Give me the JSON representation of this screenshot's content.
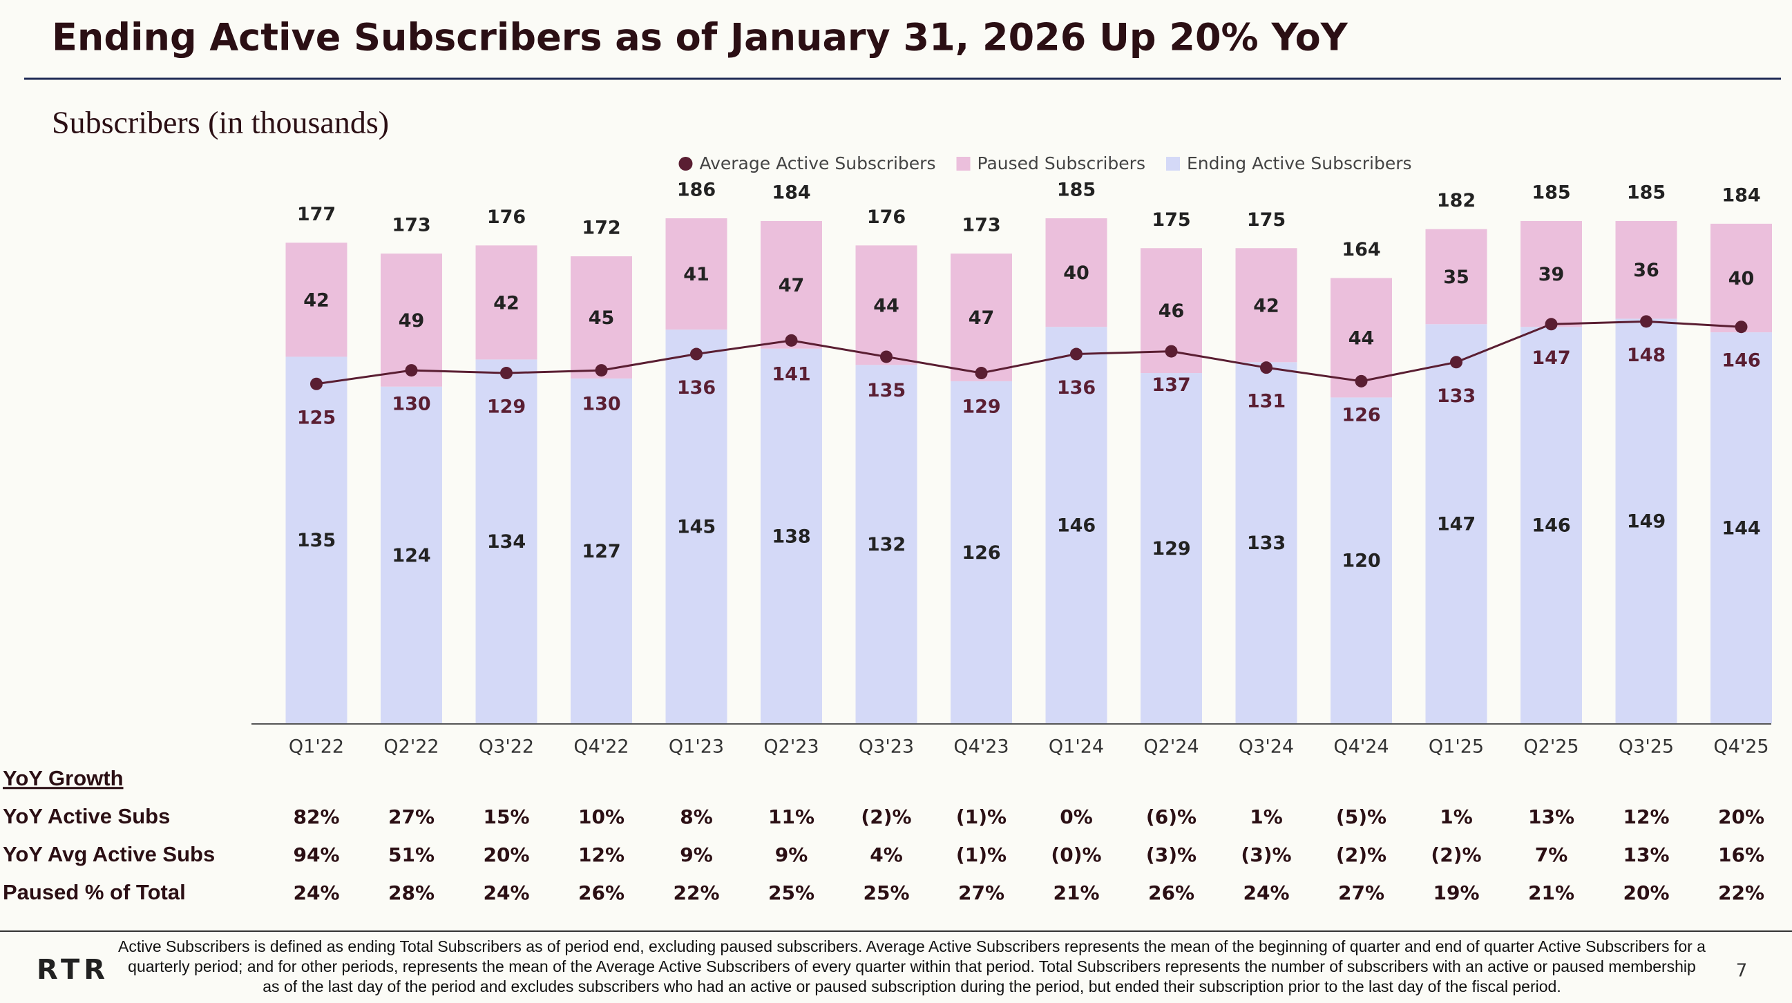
{
  "title": "Ending Active Subscribers as of January 31, 2026 Up 20% YoY",
  "subtitle": "Subscribers (in thousands)",
  "chart_data": {
    "type": "stacked-bar-line",
    "categories": [
      "Q1'22",
      "Q2'22",
      "Q3'22",
      "Q4'22",
      "Q1'23",
      "Q2'23",
      "Q3'23",
      "Q4'23",
      "Q1'24",
      "Q2'24",
      "Q3'24",
      "Q4'24",
      "Q1'25",
      "Q2'25",
      "Q3'25",
      "Q4'25"
    ],
    "series": [
      {
        "name": "Ending Active Subscribers",
        "type": "bar",
        "color": "#d4d9f7",
        "values": [
          135,
          124,
          134,
          127,
          145,
          138,
          132,
          126,
          146,
          129,
          133,
          120,
          147,
          146,
          149,
          144
        ]
      },
      {
        "name": "Paused Subscribers",
        "type": "bar",
        "color": "#ebbfdc",
        "values": [
          42,
          49,
          42,
          45,
          41,
          47,
          44,
          47,
          40,
          46,
          42,
          44,
          35,
          39,
          36,
          40
        ]
      },
      {
        "name": "Average Active Subscribers",
        "type": "line",
        "color": "#5a1e32",
        "values": [
          125,
          130,
          129,
          130,
          136,
          141,
          135,
          129,
          136,
          137,
          131,
          126,
          133,
          147,
          148,
          146
        ]
      }
    ],
    "totals": [
      177,
      173,
      176,
      172,
      186,
      184,
      176,
      173,
      185,
      175,
      175,
      164,
      182,
      185,
      185,
      184
    ],
    "ylim": [
      0,
      200
    ]
  },
  "table": {
    "title": "YoY Growth",
    "rows": [
      {
        "label": "YoY Active Subs",
        "values": [
          "82%",
          "27%",
          "15%",
          "10%",
          "8%",
          "11%",
          "(2)%",
          "(1)%",
          "0%",
          "(6)%",
          "1%",
          "(5)%",
          "1%",
          "13%",
          "12%",
          "20%"
        ]
      },
      {
        "label": "YoY Avg Active Subs",
        "values": [
          "94%",
          "51%",
          "20%",
          "12%",
          "9%",
          "9%",
          "4%",
          "(1)%",
          "(0)%",
          "(3)%",
          "(3)%",
          "(2)%",
          "(2)%",
          "7%",
          "13%",
          "16%"
        ]
      },
      {
        "label": "Paused % of Total",
        "values": [
          "24%",
          "28%",
          "24%",
          "26%",
          "22%",
          "25%",
          "25%",
          "27%",
          "21%",
          "26%",
          "24%",
          "27%",
          "19%",
          "21%",
          "20%",
          "22%"
        ]
      }
    ]
  },
  "footnote": "Active Subscribers is defined as ending Total Subscribers as of period end, excluding paused subscribers. Average Active Subscribers represents the mean of the beginning of quarter and end of quarter Active Subscribers for a quarterly period; and for other periods, represents the mean of the Average Active Subscribers of every quarter within that period.  Total Subscribers represents the number of subscribers with an active or paused membership as of the last day of the period and excludes subscribers who had an active or paused subscription during the period, but ended their subscription prior to the last day of the fiscal period.",
  "logo": "RTR",
  "page_number": 7
}
